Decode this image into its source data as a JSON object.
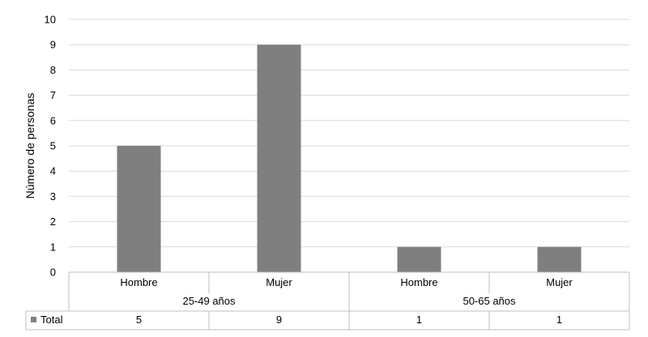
{
  "chart_data": {
    "type": "bar",
    "title": "",
    "xlabel": "",
    "ylabel": "Número de personas",
    "ylim": [
      0,
      10
    ],
    "yticks": [
      0,
      1,
      2,
      3,
      4,
      5,
      6,
      7,
      8,
      9,
      10
    ],
    "groups": [
      {
        "label": "25-49 años",
        "categories": [
          "Hombre",
          "Mujer"
        ]
      },
      {
        "label": "50-65 años",
        "categories": [
          "Hombre",
          "Mujer"
        ]
      }
    ],
    "categories": [
      "Hombre",
      "Mujer",
      "Hombre",
      "Mujer"
    ],
    "series": [
      {
        "name": "Total",
        "values": [
          5,
          9,
          1,
          1
        ],
        "color": "#7f7f7f"
      }
    ],
    "grid": true,
    "legend": "data-table-left",
    "data_table": true
  },
  "colors": {
    "bar": "#7f7f7f",
    "grid": "#d9d9d9",
    "table_border": "#bfbfbf"
  }
}
